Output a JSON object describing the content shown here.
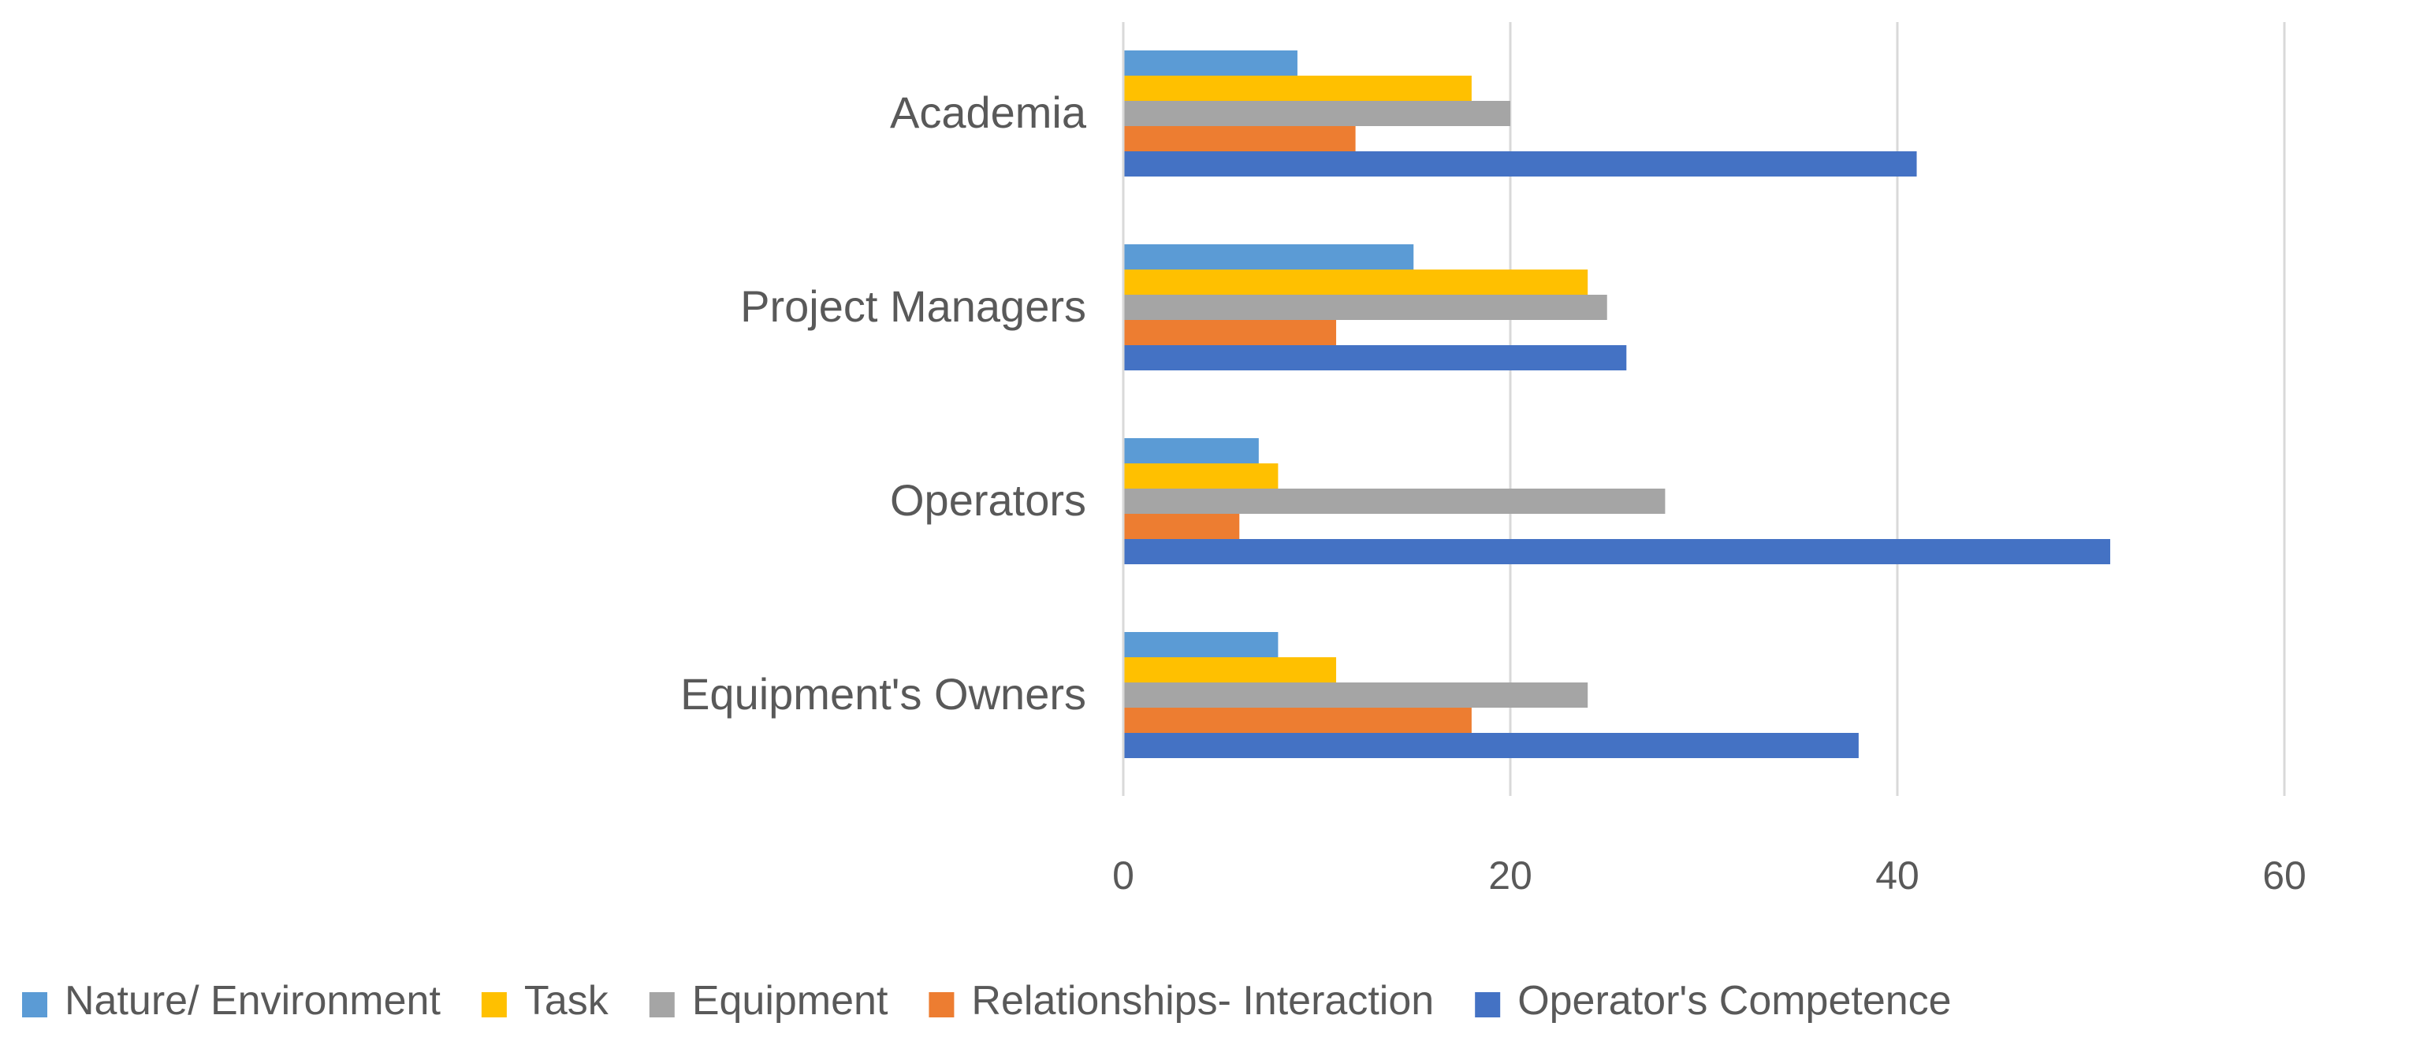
{
  "chart_data": {
    "type": "bar",
    "orientation": "horizontal",
    "title": "",
    "xlabel": "",
    "ylabel": "",
    "categories": [
      "Academia",
      "Project Managers",
      "Operators",
      "Equipment's Owners"
    ],
    "series": [
      {
        "name": "Nature/ Environment",
        "color": "#5B9BD5",
        "values": [
          9,
          15,
          7,
          8
        ]
      },
      {
        "name": "Task",
        "color": "#FFC000",
        "values": [
          18,
          24,
          8,
          11
        ]
      },
      {
        "name": "Equipment",
        "color": "#A5A5A5",
        "values": [
          20,
          25,
          28,
          24
        ]
      },
      {
        "name": "Relationships- Interaction",
        "color": "#ED7D31",
        "values": [
          12,
          11,
          6,
          18
        ]
      },
      {
        "name": "Operator's Competence",
        "color": "#4472C4",
        "values": [
          41,
          26,
          51,
          38
        ]
      }
    ],
    "xlim": [
      0,
      60
    ],
    "xticks": [
      0,
      20,
      40,
      60
    ],
    "grid": true,
    "legend_position": "bottom"
  }
}
